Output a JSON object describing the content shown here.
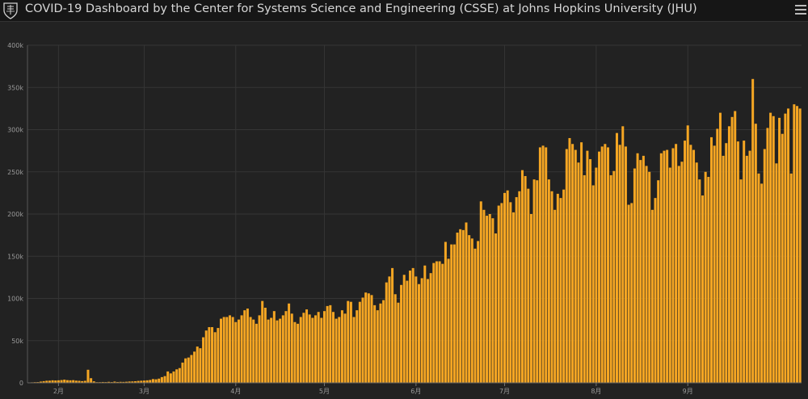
{
  "header": {
    "title": "COVID-19 Dashboard by the Center for Systems Science and Engineering (CSSE) at Johns Hopkins University (JHU)",
    "logo_icon": "jhu-shield-icon",
    "menu_icon": "hamburger-menu-icon"
  },
  "colors": {
    "bar": "#f5a623",
    "background": "#222222",
    "grid": "#353535"
  },
  "chart_data": {
    "type": "bar",
    "title": "",
    "xlabel": "",
    "ylabel": "",
    "ylim": [
      0,
      400000
    ],
    "y_ticks": [
      {
        "value": 0,
        "label": "0"
      },
      {
        "value": 50000,
        "label": "50k"
      },
      {
        "value": 100000,
        "label": "100k"
      },
      {
        "value": 150000,
        "label": "150k"
      },
      {
        "value": 200000,
        "label": "200k"
      },
      {
        "value": 250000,
        "label": "250k"
      },
      {
        "value": 300000,
        "label": "300k"
      },
      {
        "value": 350000,
        "label": "350k"
      },
      {
        "value": 400000,
        "label": "400k"
      }
    ],
    "x_ticks": [
      {
        "index": 10,
        "label": "2月"
      },
      {
        "index": 39,
        "label": "3月"
      },
      {
        "index": 70,
        "label": "4月"
      },
      {
        "index": 100,
        "label": "5月"
      },
      {
        "index": 131,
        "label": "6月"
      },
      {
        "index": 161,
        "label": "7月"
      },
      {
        "index": 192,
        "label": "8月"
      },
      {
        "index": 223,
        "label": "9月"
      }
    ],
    "grid": true,
    "legend": "none",
    "values": [
      500,
      600,
      800,
      900,
      1500,
      2000,
      2500,
      2600,
      3000,
      2800,
      3000,
      3300,
      3800,
      3200,
      3000,
      3200,
      2600,
      2400,
      2000,
      2400,
      15500,
      5500,
      1800,
      800,
      800,
      1000,
      900,
      1200,
      900,
      1500,
      1000,
      1200,
      1100,
      1300,
      1600,
      1700,
      1900,
      2300,
      2500,
      2700,
      3000,
      3400,
      4500,
      4200,
      5000,
      6800,
      8000,
      13500,
      11200,
      13500,
      16000,
      17500,
      24000,
      29000,
      30000,
      33000,
      37000,
      43000,
      41000,
      54000,
      62000,
      66000,
      66000,
      60000,
      65000,
      76000,
      78000,
      78000,
      80000,
      78000,
      72000,
      75000,
      80000,
      86000,
      88000,
      78000,
      75000,
      70000,
      80000,
      97000,
      89000,
      75000,
      77000,
      85000,
      74000,
      76000,
      80000,
      85000,
      94000,
      82000,
      72000,
      70000,
      78000,
      83000,
      87000,
      81000,
      77000,
      80000,
      84000,
      77000,
      85000,
      91000,
      92000,
      84000,
      76000,
      78000,
      86000,
      82000,
      97000,
      96000,
      78000,
      86000,
      96000,
      101000,
      107000,
      106000,
      104000,
      92000,
      86000,
      94000,
      98000,
      119000,
      126000,
      136000,
      105000,
      95000,
      116000,
      128000,
      121000,
      133000,
      136000,
      126000,
      117000,
      124000,
      139000,
      123000,
      130000,
      142000,
      144000,
      144000,
      141000,
      167000,
      147000,
      164000,
      164000,
      178000,
      182000,
      181000,
      190000,
      175000,
      171000,
      159000,
      168000,
      215000,
      205000,
      198000,
      200000,
      195000,
      177000,
      210000,
      213000,
      225000,
      228000,
      214000,
      202000,
      220000,
      227000,
      252000,
      245000,
      230000,
      200000,
      241000,
      240000,
      279000,
      281000,
      279000,
      241000,
      227000,
      205000,
      224000,
      219000,
      229000,
      277000,
      290000,
      283000,
      276000,
      261000,
      285000,
      246000,
      275000,
      265000,
      234000,
      255000,
      274000,
      280000,
      283000,
      279000,
      246000,
      251000,
      296000,
      282000,
      304000,
      280000,
      211000,
      213000,
      254000,
      272000,
      264000,
      269000,
      257000,
      250000,
      205000,
      219000,
      240000,
      272000,
      275000,
      276000,
      255000,
      278000,
      283000,
      257000,
      262000,
      287000,
      305000,
      282000,
      276000,
      261000,
      241000,
      222000,
      250000,
      244000,
      291000,
      281000,
      301000,
      320000,
      269000,
      284000,
      304000,
      315000,
      322000,
      286000,
      241000,
      287000,
      269000,
      275000,
      360000,
      307000,
      248000,
      236000,
      277000,
      302000,
      320000,
      316000,
      260000,
      314000,
      295000,
      319000,
      325000,
      248000,
      330000,
      328000,
      325000
    ]
  }
}
